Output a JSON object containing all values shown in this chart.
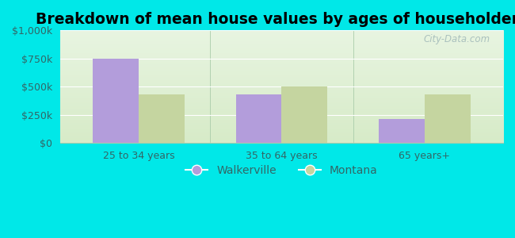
{
  "title": "Breakdown of mean house values by ages of householders",
  "categories": [
    "25 to 34 years",
    "35 to 64 years",
    "65 years+"
  ],
  "walkerville_values": [
    750000,
    430000,
    215000
  ],
  "montana_values": [
    430000,
    500000,
    430000
  ],
  "walkerville_color": "#b39ddb",
  "montana_color": "#c5d5a0",
  "background_color": "#00e8e8",
  "plot_bg_top": "#e8f0e0",
  "plot_bg_bottom": "#d0e8c8",
  "ylim": [
    0,
    1000000
  ],
  "yticks": [
    0,
    250000,
    500000,
    750000,
    1000000
  ],
  "ytick_labels": [
    "$0",
    "$250k",
    "$500k",
    "$750k",
    "$1,000k"
  ],
  "bar_width": 0.32,
  "legend_labels": [
    "Walkerville",
    "Montana"
  ],
  "watermark": "City-Data.com",
  "title_fontsize": 13.5,
  "tick_fontsize": 9,
  "tick_color": "#336666",
  "legend_fontsize": 10
}
